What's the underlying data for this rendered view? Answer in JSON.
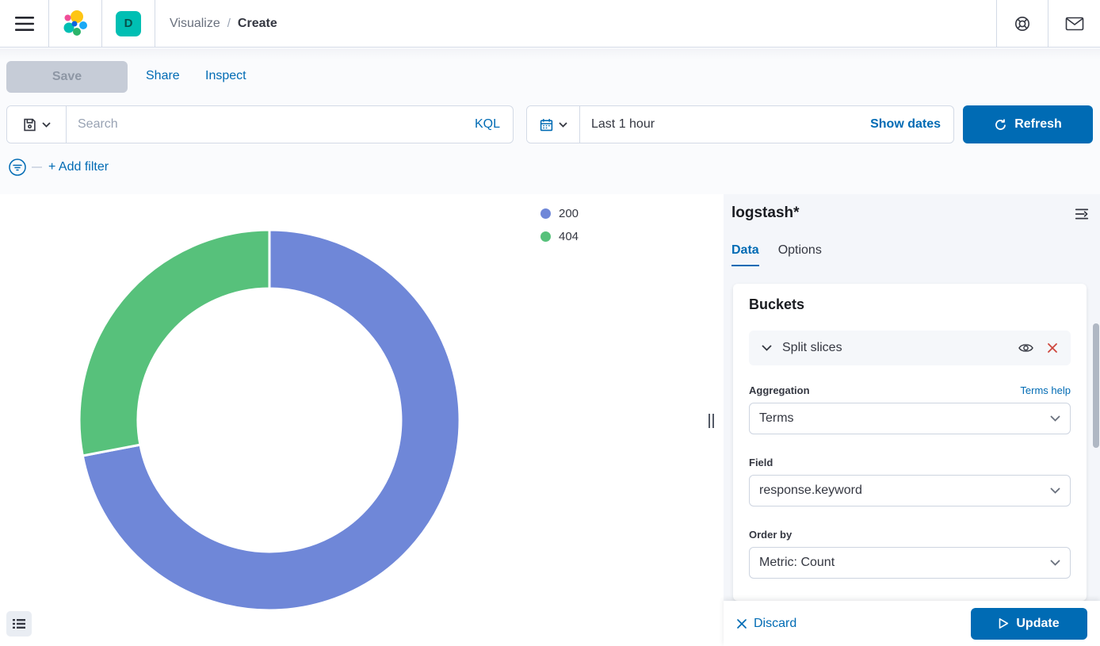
{
  "header": {
    "breadcrumbs": [
      {
        "label": "Visualize"
      },
      {
        "label": "Create"
      }
    ],
    "space_initial": "D"
  },
  "toolbar": {
    "save_label": "Save",
    "share_label": "Share",
    "inspect_label": "Inspect"
  },
  "query_bar": {
    "search_placeholder": "Search",
    "kql_label": "KQL",
    "time_range": "Last 1 hour",
    "show_dates_label": "Show dates",
    "refresh_label": "Refresh"
  },
  "filter_bar": {
    "add_filter_label": "+ Add filter"
  },
  "chart_data": {
    "type": "pie",
    "subtype": "donut",
    "title": "",
    "categories": [
      "200",
      "404"
    ],
    "values": [
      72,
      28
    ],
    "value_note": "percent share estimated from slice angles (no numeric labels shown)",
    "colors": [
      "#6f87d8",
      "#57c17b"
    ],
    "legend_position": "right"
  },
  "legend": [
    {
      "label": "200",
      "color": "#6f87d8"
    },
    {
      "label": "404",
      "color": "#57c17b"
    }
  ],
  "panel": {
    "index_pattern": "logstash*",
    "tabs": [
      {
        "label": "Data"
      },
      {
        "label": "Options"
      }
    ],
    "buckets": {
      "title": "Buckets",
      "bucket_row_label": "Split slices",
      "aggregation_label": "Aggregation",
      "terms_help_label": "Terms help",
      "aggregation_value": "Terms",
      "field_label": "Field",
      "field_value": "response.keyword",
      "order_by_label": "Order by",
      "order_by_value": "Metric: Count"
    },
    "actions": {
      "discard_label": "Discard",
      "update_label": "Update"
    }
  },
  "colors": {
    "accent_blue": "#006BB4",
    "badge_teal": "#00BFB3",
    "danger_red": "#ce463d",
    "slice_blue": "#6f87d8",
    "slice_green": "#57c17b"
  }
}
